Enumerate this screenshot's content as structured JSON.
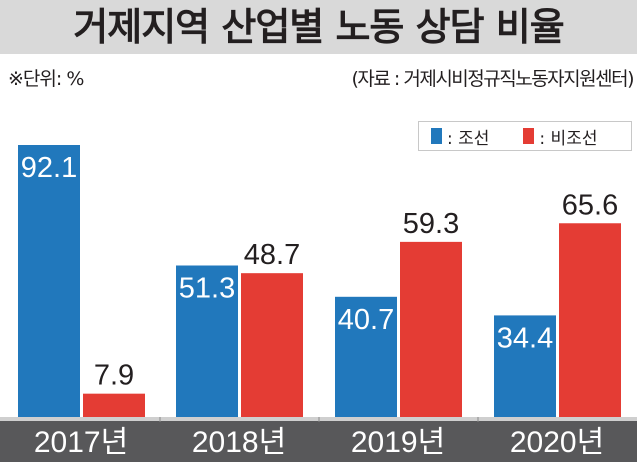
{
  "title": "거제지역 산업별 노동 상담 비율",
  "unit": "※단위: %",
  "source": "(자료 : 거제시비정규직노동자지원센터)",
  "colors": {
    "shipbuilding": "#2178bc",
    "non_shipbuilding": "#e43c34",
    "axis_band": "#58585a",
    "title_bg": "#d9d9d9"
  },
  "chart_data": {
    "type": "bar",
    "title": "거제지역 산업별 노동 상담 비율",
    "xlabel": "",
    "ylabel": "%",
    "categories": [
      "2017년",
      "2018년",
      "2019년",
      "2020년"
    ],
    "series": [
      {
        "name": "조선",
        "legend": ": 조선",
        "values": [
          92.1,
          51.3,
          40.7,
          34.4
        ]
      },
      {
        "name": "비조선",
        "legend": ": 비조선",
        "values": [
          7.9,
          48.7,
          59.3,
          65.6
        ]
      }
    ],
    "value_labels": [
      [
        "92.1",
        "51.3",
        "40.7",
        "34.4"
      ],
      [
        "7.9",
        "48.7",
        "59.3",
        "65.6"
      ]
    ],
    "ylim": [
      0,
      100
    ],
    "grid": false,
    "legend_position": "top-right"
  }
}
